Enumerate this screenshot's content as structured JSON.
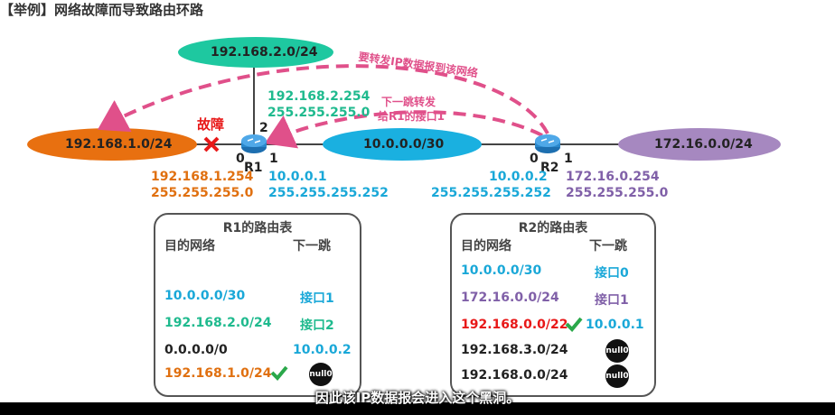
{
  "title": "【举例】网络故障而导致路由环路",
  "networks": {
    "top": "192.168.2.0/24",
    "left": "192.168.1.0/24",
    "middle": "10.0.0.0/30",
    "right": "172.16.0.0/24"
  },
  "fault_label": "故障",
  "routers": {
    "r1": {
      "name": "R1",
      "port0": "0",
      "port1": "1",
      "port2": "2"
    },
    "r2": {
      "name": "R2",
      "port0": "0",
      "port1": "1"
    }
  },
  "addresses": {
    "r1_if2_ip": "192.168.2.254",
    "r1_if2_mask": "255.255.255.0",
    "r1_if0_ip": "192.168.1.254",
    "r1_if0_mask": "255.255.255.0",
    "r1_if1_ip": "10.0.0.1",
    "r1_if1_mask": "255.255.255.252",
    "r2_if0_ip": "10.0.0.2",
    "r2_if0_mask": "255.255.255.252",
    "r2_if1_ip": "172.16.0.254",
    "r2_if1_mask": "255.255.255.0"
  },
  "annotations": {
    "forward_to_network": "要转发IP数据报到该网络",
    "next_hop_line1": "下一跳转发",
    "next_hop_line2": "给R1的接口1"
  },
  "r1_table": {
    "title": "R1的路由表",
    "col_dest": "目的网络",
    "col_next": "下一跳",
    "rows": [
      {
        "dest": "10.0.0.0/30",
        "next": "接口1"
      },
      {
        "dest": "192.168.2.0/24",
        "next": "接口2"
      },
      {
        "dest": "0.0.0.0/0",
        "next": "10.0.0.2"
      },
      {
        "dest": "192.168.1.0/24",
        "next": "null0"
      }
    ]
  },
  "r2_table": {
    "title": "R2的路由表",
    "col_dest": "目的网络",
    "col_next": "下一跳",
    "rows": [
      {
        "dest": "10.0.0.0/30",
        "next": "接口0"
      },
      {
        "dest": "172.16.0.0/24",
        "next": "接口1"
      },
      {
        "dest": "192.168.0.0/22",
        "next": "10.0.0.1"
      },
      {
        "dest": "192.168.3.0/24",
        "next": "null0"
      },
      {
        "dest": "192.168.0.0/24",
        "next": "null0"
      }
    ]
  },
  "subtitle": "因此该IP数据报会进入这个黑洞。",
  "colors": {
    "orange": "#e07010",
    "cyan": "#1aa8d8",
    "teal": "#1fba8e",
    "purple": "#8060a8",
    "pink": "#e0508a",
    "red": "#e81818",
    "check": "#2aa84a"
  }
}
